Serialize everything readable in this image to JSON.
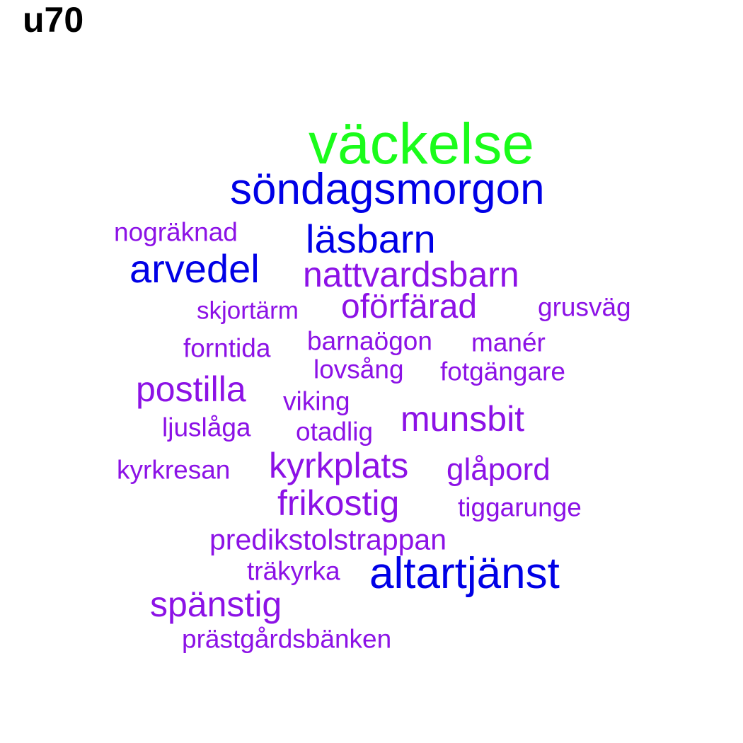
{
  "title": "u70",
  "colors": {
    "green": "#1afc1a",
    "blue": "#0000e6",
    "purple": "#8c12e6"
  },
  "words": [
    {
      "text": "väckelse",
      "color": "green"
    },
    {
      "text": "söndagsmorgon",
      "color": "blue"
    },
    {
      "text": "nogräknad",
      "color": "purple"
    },
    {
      "text": "läsbarn",
      "color": "blue"
    },
    {
      "text": "arvedel",
      "color": "blue"
    },
    {
      "text": "nattvardsbarn",
      "color": "purple"
    },
    {
      "text": "skjortärm",
      "color": "purple"
    },
    {
      "text": "oförfärad",
      "color": "purple"
    },
    {
      "text": "grusväg",
      "color": "purple"
    },
    {
      "text": "forntida",
      "color": "purple"
    },
    {
      "text": "barnaögon",
      "color": "purple"
    },
    {
      "text": "manér",
      "color": "purple"
    },
    {
      "text": "lovsång",
      "color": "purple"
    },
    {
      "text": "fotgängare",
      "color": "purple"
    },
    {
      "text": "postilla",
      "color": "purple"
    },
    {
      "text": "viking",
      "color": "purple"
    },
    {
      "text": "munsbit",
      "color": "purple"
    },
    {
      "text": "ljuslåga",
      "color": "purple"
    },
    {
      "text": "otadlig",
      "color": "purple"
    },
    {
      "text": "kyrkresan",
      "color": "purple"
    },
    {
      "text": "kyrkplats",
      "color": "purple"
    },
    {
      "text": "glåpord",
      "color": "purple"
    },
    {
      "text": "frikostig",
      "color": "purple"
    },
    {
      "text": "tiggarunge",
      "color": "purple"
    },
    {
      "text": "predikstolstrappan",
      "color": "purple"
    },
    {
      "text": "träkyrka",
      "color": "purple"
    },
    {
      "text": "altartjänst",
      "color": "blue"
    },
    {
      "text": "spänstig",
      "color": "purple"
    },
    {
      "text": "prästgårdsbänken",
      "color": "purple"
    }
  ]
}
